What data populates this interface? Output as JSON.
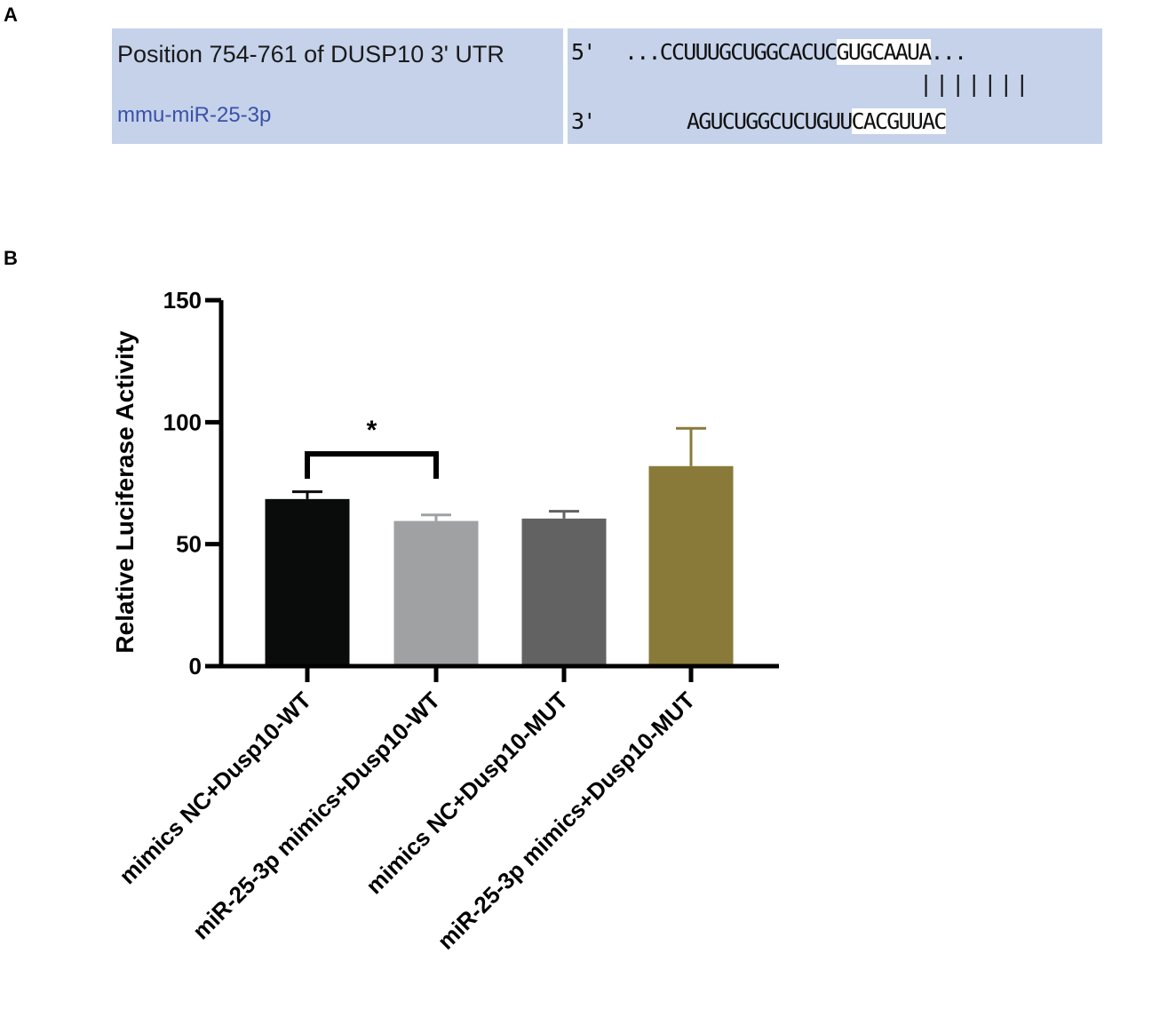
{
  "panels": {
    "a": "A",
    "b": "B"
  },
  "alignment": {
    "site_label": "Position 754-761 of DUSP10 3' UTR",
    "mirna_label": "mmu-miR-25-3p",
    "utr": {
      "prime": "5'",
      "prefix": "...CCUUUGCUGGCACUC",
      "seed": "GUGCAAUA",
      "suffix": "..."
    },
    "pairing": "|||||||",
    "mirna": {
      "prime": "3'",
      "prefix": "AGUCUGGCUCUGUU",
      "seed": "CACGUUAC"
    }
  },
  "colors": {
    "alignment_bg": "#c5d2ea",
    "mirna_label": "#3a52a8",
    "bars": [
      "#0a0c0c",
      "#a0a1a3",
      "#616261",
      "#8a7a3a"
    ]
  },
  "chart_data": {
    "type": "bar",
    "categories": [
      "mimics NC+Dusp10-WT",
      "miR-25-3p mimics+Dusp10-WT",
      "mimics NC+Dusp10-MUT",
      "miR-25-3p mimics+Dusp10-MUT"
    ],
    "values": [
      68.5,
      59.5,
      60.5,
      82
    ],
    "errors": [
      3,
      2.5,
      3,
      15.5
    ],
    "ylabel": "Relative Luciferase Activity",
    "xlabel": "",
    "ylim": [
      0,
      150
    ],
    "yticks": [
      0,
      50,
      100,
      150
    ],
    "grid": false,
    "significance": [
      {
        "from": 0,
        "to": 1,
        "label": "*"
      }
    ]
  }
}
